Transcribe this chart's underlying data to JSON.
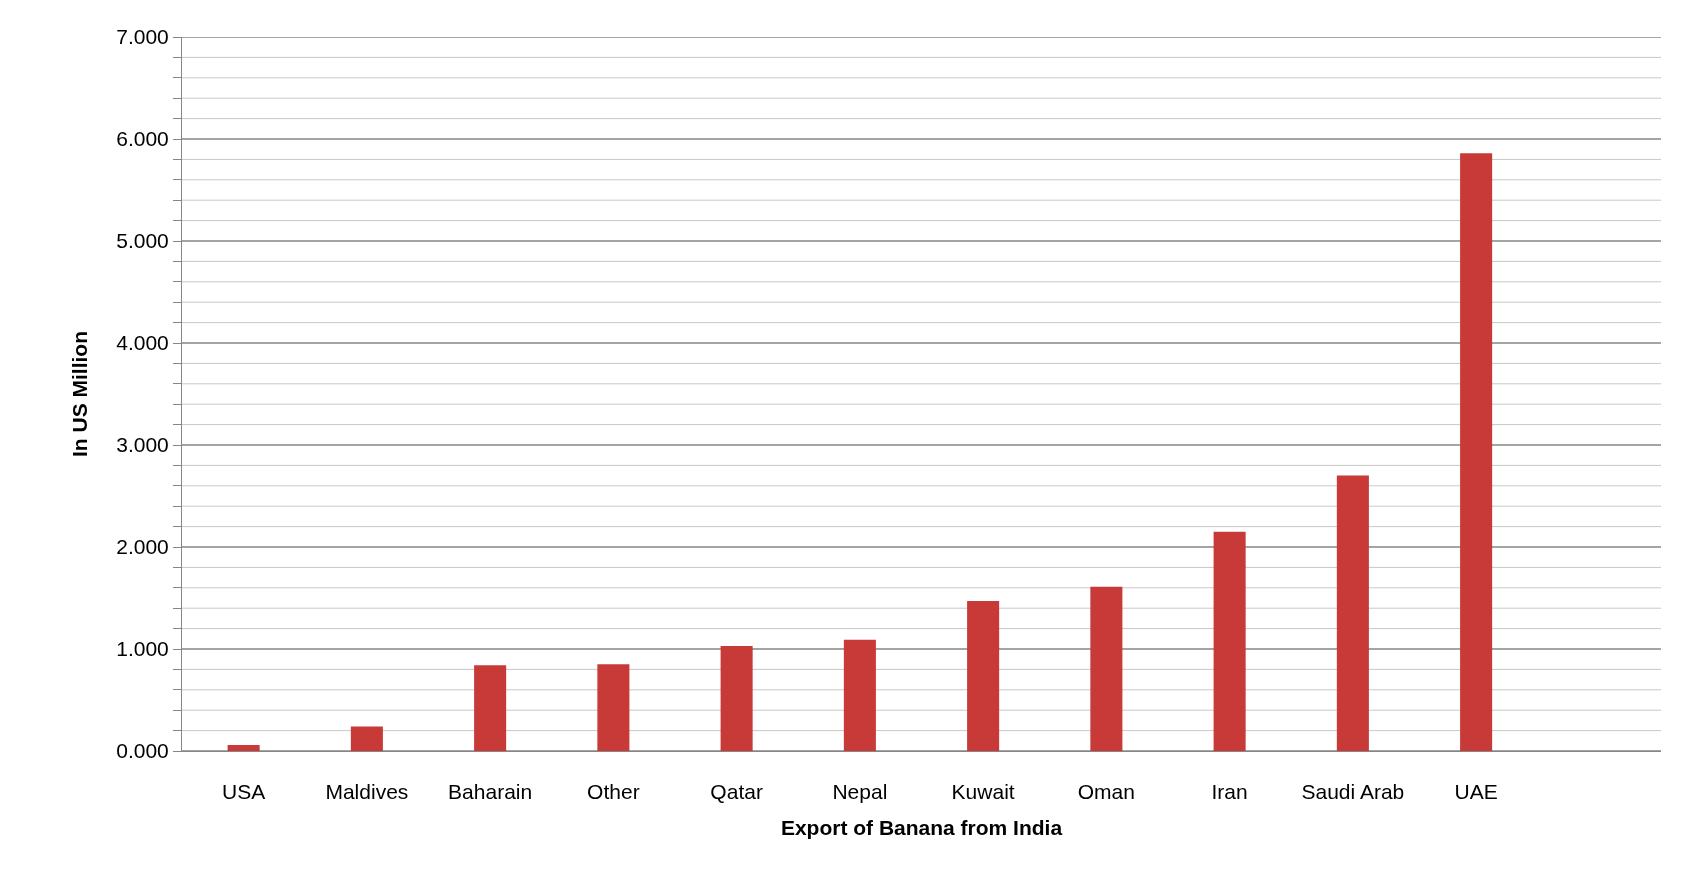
{
  "chart_data": {
    "type": "bar",
    "xlabel": "Export of Banana from India",
    "ylabel": "In US Million",
    "categories": [
      "USA",
      "Maldives",
      "Baharain",
      "Other",
      "Qatar",
      "Nepal",
      "Kuwait",
      "Oman",
      "Iran",
      "Saudi Arab",
      "UAE",
      null
    ],
    "values": [
      0.06,
      0.24,
      0.84,
      0.85,
      1.03,
      1.09,
      1.47,
      1.61,
      2.15,
      2.7,
      5.86,
      null
    ],
    "color": "#c83a38",
    "ylim": [
      0,
      7
    ],
    "grid": "y",
    "yticks": [
      {
        "value": 0,
        "label": "0.000"
      },
      {
        "value": 0.2,
        "label": null
      },
      {
        "value": 0.4,
        "label": null
      },
      {
        "value": 0.6,
        "label": null
      },
      {
        "value": 0.8,
        "label": null
      },
      {
        "value": 1,
        "label": "1.000"
      },
      {
        "value": 1.2,
        "label": null
      },
      {
        "value": 1.4,
        "label": null
      },
      {
        "value": 1.6,
        "label": null
      },
      {
        "value": 1.8,
        "label": null
      },
      {
        "value": 2,
        "label": "2.000"
      },
      {
        "value": 2.2,
        "label": null
      },
      {
        "value": 2.4,
        "label": null
      },
      {
        "value": 2.6,
        "label": null
      },
      {
        "value": 2.8,
        "label": null
      },
      {
        "value": 3,
        "label": "3.000"
      },
      {
        "value": 3.2,
        "label": null
      },
      {
        "value": 3.4,
        "label": null
      },
      {
        "value": 3.6,
        "label": null
      },
      {
        "value": 3.8,
        "label": null
      },
      {
        "value": 4,
        "label": "4.000"
      },
      {
        "value": 4.2,
        "label": null
      },
      {
        "value": 4.4,
        "label": null
      },
      {
        "value": 4.6,
        "label": null
      },
      {
        "value": 4.8,
        "label": null
      },
      {
        "value": 5,
        "label": "5.000"
      },
      {
        "value": 5.2,
        "label": null
      },
      {
        "value": 5.4,
        "label": null
      },
      {
        "value": 5.6,
        "label": null
      },
      {
        "value": 5.8,
        "label": null
      },
      {
        "value": 6,
        "label": "6.000"
      },
      {
        "value": 6.2,
        "label": null
      },
      {
        "value": 6.4,
        "label": null
      },
      {
        "value": 6.6,
        "label": null
      },
      {
        "value": 6.8,
        "label": null
      },
      {
        "value": 7,
        "label": "7.000"
      }
    ]
  }
}
